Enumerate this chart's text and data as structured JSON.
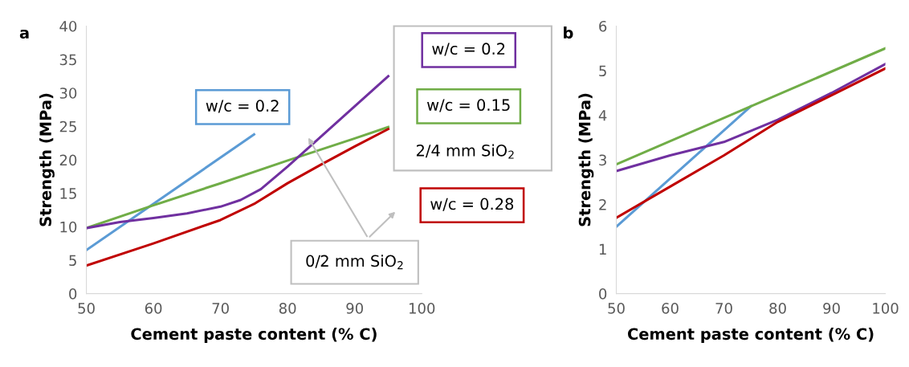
{
  "chart_data": [
    {
      "type": "line",
      "title": "a",
      "xlabel": "Cement paste content (% C)",
      "ylabel": "Strength (MPa)",
      "xlim": [
        50,
        100
      ],
      "xticks": [
        50,
        60,
        70,
        80,
        90,
        100
      ],
      "ylim": [
        0,
        40
      ],
      "yticks": [
        0,
        5,
        10,
        15,
        20,
        25,
        30,
        35,
        40
      ],
      "grid": false,
      "legend": false,
      "marker": "none",
      "series": [
        {
          "name": "w/c = 0.2",
          "color": "#5b9bd5",
          "x": [
            50,
            75
          ],
          "values": [
            6.5,
            23.8
          ]
        },
        {
          "name": "w/c = 0.15",
          "color": "#70ad47",
          "x": [
            50,
            60,
            70,
            80,
            90,
            95
          ],
          "values": [
            9.8,
            13.2,
            16.5,
            19.9,
            23.2,
            24.9
          ]
        },
        {
          "name": "w/c = 0.2",
          "color": "#7030a0",
          "x": [
            50,
            55,
            60,
            65,
            70,
            73,
            76,
            80,
            85,
            90,
            95
          ],
          "values": [
            9.8,
            10.7,
            11.3,
            12.0,
            13.0,
            14.0,
            15.6,
            19.0,
            23.5,
            28.0,
            32.5
          ]
        },
        {
          "name": "w/c = 0.28",
          "color": "#c00000",
          "x": [
            50,
            60,
            70,
            75,
            80,
            85,
            90,
            95
          ],
          "values": [
            4.2,
            7.5,
            11.0,
            13.4,
            16.5,
            19.3,
            22.0,
            24.6
          ]
        }
      ],
      "annotations": [
        "2/4 mm SiO$_{2}$",
        "0/2 mm SiO$_{2}$"
      ]
    },
    {
      "type": "line",
      "title": "b",
      "xlabel": "Cement paste content (% C)",
      "ylabel": "Strength (MPa)",
      "xlim": [
        50,
        100
      ],
      "xticks": [
        50,
        60,
        70,
        80,
        90,
        100
      ],
      "ylim": [
        0,
        6
      ],
      "yticks": [
        0,
        1,
        2,
        3,
        4,
        5,
        6
      ],
      "grid": false,
      "legend": false,
      "marker": "none",
      "series": [
        {
          "color": "#5b9bd5",
          "x": [
            50,
            75
          ],
          "values": [
            1.5,
            4.2
          ]
        },
        {
          "color": "#70ad47",
          "x": [
            50,
            100
          ],
          "values": [
            2.9,
            5.5
          ]
        },
        {
          "color": "#7030a0",
          "x": [
            50,
            60,
            70,
            80,
            90,
            100
          ],
          "values": [
            2.75,
            3.1,
            3.4,
            3.9,
            4.5,
            5.15
          ]
        },
        {
          "color": "#c00000",
          "x": [
            50,
            60,
            70,
            80,
            90,
            100
          ],
          "values": [
            1.7,
            2.4,
            3.1,
            3.85,
            4.45,
            5.05
          ]
        }
      ]
    }
  ]
}
